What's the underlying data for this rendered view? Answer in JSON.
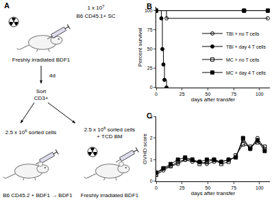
{
  "diagram": {
    "panel_label": "A",
    "injection": {
      "base": "1 x 10",
      "sup": "7"
    },
    "donor": "B6 CD45.1+ SC",
    "recipient": "Freshly irradiated BDF1",
    "interval": "4d",
    "sort": [
      "Sort",
      "CD3+"
    ],
    "left_arm": {
      "cells": {
        "base": "2.5 x 10",
        "sup": "6",
        "rest": " sorted cells"
      },
      "recipient": "B6 CD45.2 + BDF1 → BDF1"
    },
    "right_arm": {
      "cells": {
        "base": "2.5 x 10",
        "sup": "6",
        "rest": " sorted cells"
      },
      "extra": "+ TCD BM",
      "recipient": "Freshly irradiated BDF1"
    }
  },
  "chart_data": [
    {
      "panel_label": "B",
      "type": "line",
      "line_style": "step",
      "xlabel": "days after transfer",
      "ylabel": "Percent survival",
      "xlim": [
        0,
        110
      ],
      "ylim": [
        0,
        105
      ],
      "xticks": [
        0,
        25,
        50,
        75,
        100
      ],
      "yticks": [
        0,
        25,
        50,
        75,
        100
      ],
      "legend": "lower right",
      "series": [
        {
          "name": "TBI + no T cells",
          "color": "#000000",
          "marker": "circle-open",
          "x": [
            0,
            10,
            108
          ],
          "values": [
            100,
            90,
            90
          ]
        },
        {
          "name": "TBI + day 4 T cells",
          "color": "#000000",
          "marker": "circle",
          "x": [
            0,
            5,
            6,
            7,
            8,
            10
          ],
          "values": [
            100,
            90,
            50,
            30,
            10,
            0
          ]
        },
        {
          "name": "MC + no T cells",
          "color": "#000000",
          "marker": "square-open",
          "x": [
            0,
            85,
            108
          ],
          "values": [
            100,
            100,
            100
          ]
        },
        {
          "name": "MC + day 4 T cells",
          "color": "#000000",
          "marker": "square",
          "x": [
            0,
            85,
            108
          ],
          "values": [
            100,
            100,
            100
          ]
        }
      ]
    },
    {
      "panel_label": "C",
      "type": "line",
      "line_style": "solid",
      "xlabel": "days after transfer",
      "ylabel": "GVHD score",
      "xlim": [
        0,
        110
      ],
      "ylim": [
        0,
        3
      ],
      "xticks": [
        0,
        25,
        50,
        75,
        100
      ],
      "yticks": [
        0,
        1,
        2,
        3
      ],
      "series": [
        {
          "name": "TBI + no T cells",
          "color": "#000000",
          "marker": "circle-open",
          "x": [
            0,
            7,
            14,
            21,
            28,
            35,
            42,
            49,
            56,
            63,
            70,
            77,
            84,
            91,
            98,
            105
          ],
          "values": [
            0.3,
            0.5,
            0.7,
            0.8,
            1.0,
            0.9,
            0.9,
            0.8,
            0.9,
            0.9,
            1.0,
            1.1,
            1.9,
            1.5,
            2.0,
            1.5
          ]
        },
        {
          "name": "TBI + day 4 T cells",
          "color": "#000000",
          "marker": "circle",
          "x": [
            0,
            7
          ],
          "values": [
            0.4,
            0.6
          ]
        },
        {
          "name": "MC + no T cells",
          "color": "#000000",
          "marker": "square-open",
          "x": [
            0,
            7,
            14,
            21,
            28,
            35,
            42,
            49,
            56,
            63,
            70,
            77,
            84,
            91,
            98,
            105
          ],
          "values": [
            0.3,
            0.6,
            0.7,
            0.9,
            1.0,
            1.0,
            0.8,
            0.9,
            1.0,
            0.8,
            0.9,
            1.2,
            1.7,
            1.6,
            1.8,
            1.6
          ]
        },
        {
          "name": "MC + day 4 T cells",
          "color": "#000000",
          "marker": "square",
          "x": [
            0,
            7,
            14,
            21,
            28,
            35,
            42,
            49,
            56,
            63,
            70,
            77,
            84,
            91,
            98,
            105
          ],
          "values": [
            0.4,
            0.6,
            0.8,
            1.0,
            1.1,
            1.0,
            0.9,
            1.0,
            1.0,
            0.9,
            1.0,
            1.1,
            2.0,
            1.5,
            1.9,
            1.4
          ]
        }
      ]
    }
  ]
}
